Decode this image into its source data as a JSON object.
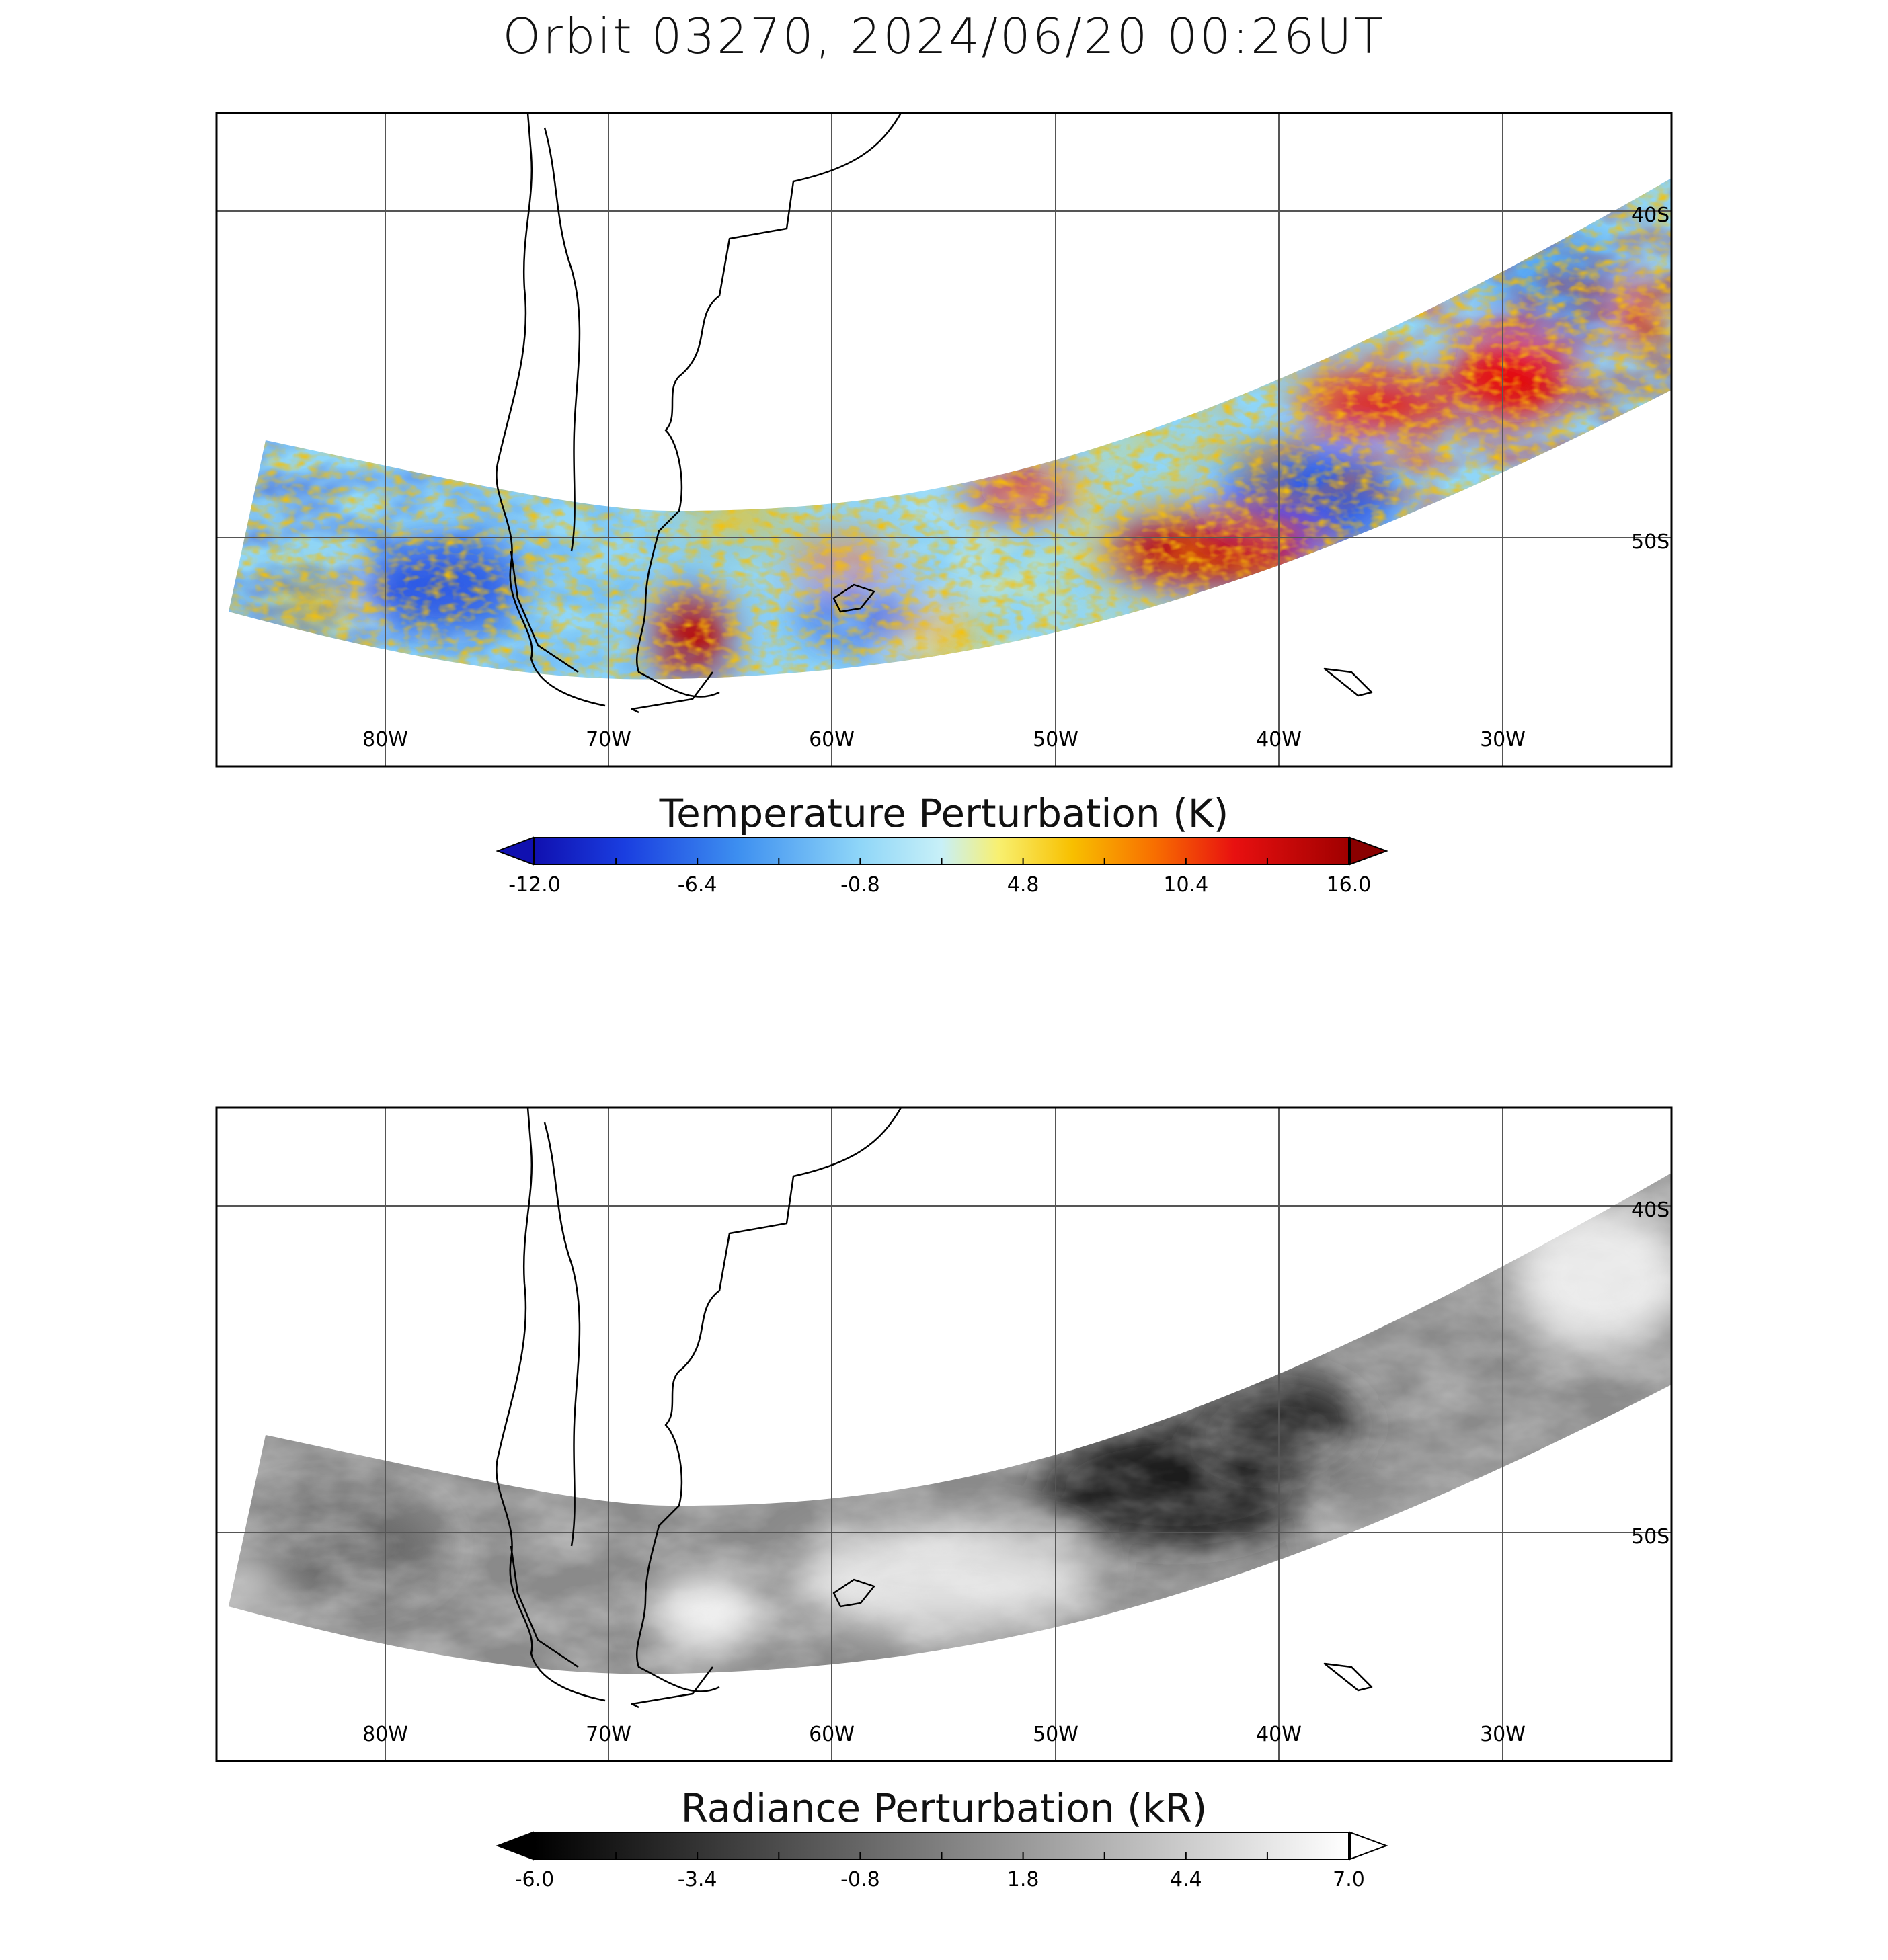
{
  "title": "Orbit 03270, 2024/06/20 00:26UT",
  "lon_labels": [
    "80W",
    "70W",
    "60W",
    "50W",
    "40W",
    "30W"
  ],
  "lat_labels": [
    "40S",
    "50S"
  ],
  "panels": [
    {
      "colorbar_title": "Temperature Perturbation (K)",
      "colorbar_ticks": [
        "-12.0",
        "-6.4",
        "-0.8",
        "4.8",
        "10.4",
        "16.0"
      ],
      "range": [
        -12.0,
        16.0
      ],
      "colormap": [
        "#1010b0",
        "#1a3ee0",
        "#3d8ff0",
        "#8fd6f8",
        "#c8f0f8",
        "#f8f070",
        "#f8c000",
        "#f87000",
        "#e81010",
        "#a00000"
      ],
      "extend_low_color": "#1010b0",
      "extend_high_color": "#8a0000"
    },
    {
      "colorbar_title": "Radiance Perturbation (kR)",
      "colorbar_ticks": [
        "-6.0",
        "-3.4",
        "-0.8",
        "1.8",
        "4.4",
        "7.0"
      ],
      "range": [
        -6.0,
        7.0
      ],
      "colormap": [
        "#000000",
        "#ffffff"
      ],
      "extend_low_color": "#000000",
      "extend_high_color": "#ffffff"
    }
  ]
}
